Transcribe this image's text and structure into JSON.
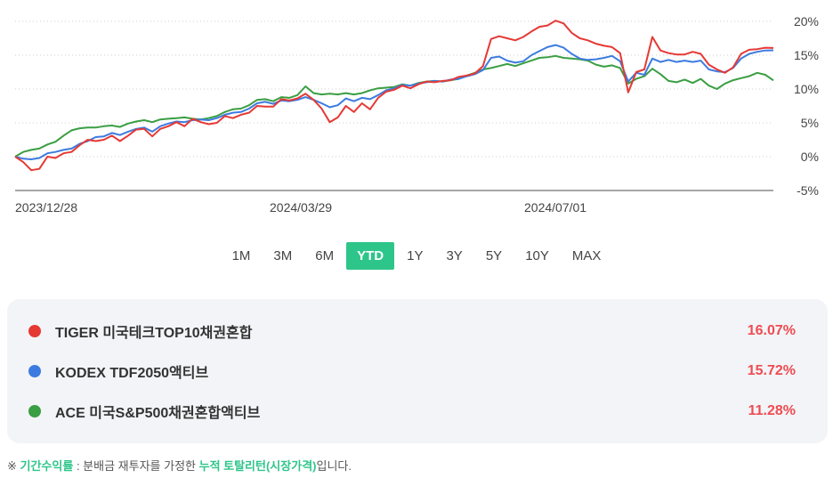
{
  "chart_data": {
    "type": "line",
    "x_ticks": [
      "2023/12/28",
      "2024/03/29",
      "2024/07/01"
    ],
    "y_ticks": [
      "20%",
      "15%",
      "10%",
      "5%",
      "0%",
      "-5%"
    ],
    "y_tick_values": [
      20,
      15,
      10,
      5,
      0,
      -5
    ],
    "ylim": [
      -5,
      20
    ],
    "grid": true,
    "series": [
      {
        "name": "TIGER 미국테크TOP10채권혼합",
        "color": "#e53935",
        "values": [
          0,
          -0.8,
          -2,
          -1.8,
          0,
          -0.2,
          0.5,
          0.7,
          1.7,
          2.5,
          2.3,
          2.5,
          3.1,
          2.3,
          3.1,
          4,
          4.1,
          3,
          4.1,
          4.5,
          5.1,
          4.5,
          5.6,
          5.1,
          4.8,
          5,
          6,
          5.7,
          6.2,
          6.5,
          7.5,
          7.4,
          7.4,
          8.5,
          8.3,
          8.6,
          9.3,
          8.4,
          7.1,
          5.1,
          5.8,
          7.5,
          6.6,
          7.9,
          7,
          8.7,
          9.6,
          9.9,
          10.5,
          10.1,
          10.7,
          11.1,
          11,
          11.2,
          11.3,
          11.8,
          12,
          12.3,
          13.4,
          17.4,
          17.8,
          17.5,
          17.2,
          17.7,
          18.5,
          19.2,
          19.4,
          20.1,
          19.7,
          18.3,
          17.5,
          17.2,
          16.7,
          16.4,
          16.2,
          15.3,
          9.5,
          12.5,
          12.9,
          17.7,
          15.7,
          15.3,
          15.1,
          15.1,
          15.5,
          15.2,
          13.6,
          12.9,
          12.4,
          13.2,
          15.2,
          15.8,
          15.9,
          16.1,
          16.07
        ]
      },
      {
        "name": "KODEX TDF2050액티브",
        "color": "#3d7be0",
        "values": [
          0,
          -0.3,
          -0.4,
          -0.2,
          0.5,
          0.7,
          1,
          1.2,
          1.9,
          2.3,
          2.9,
          3,
          3.5,
          3.2,
          3.7,
          4.1,
          4.3,
          3.7,
          4.5,
          4.9,
          5.2,
          5.1,
          5.4,
          5.5,
          5.4,
          5.7,
          6.2,
          6.5,
          6.6,
          7.1,
          7.9,
          8.1,
          7.8,
          8.3,
          8.2,
          8.4,
          8.8,
          8.4,
          7.9,
          7.3,
          7.6,
          8.6,
          8.2,
          8.7,
          8.5,
          9.1,
          9.8,
          10.1,
          10.6,
          10.5,
          10.8,
          11,
          11.2,
          11.1,
          11.4,
          11.5,
          11.9,
          12.2,
          12.8,
          14.6,
          14.8,
          14.2,
          13.9,
          14.1,
          15,
          15.6,
          16.2,
          16.5,
          16.1,
          15.2,
          14.5,
          14.3,
          14.4,
          14.6,
          14.9,
          14.1,
          11.1,
          12.4,
          12.1,
          14.5,
          14,
          14.3,
          14,
          14.2,
          14,
          14.2,
          12.9,
          12.6,
          12.5,
          13.1,
          14.5,
          15.2,
          15.5,
          15.7,
          15.72
        ]
      },
      {
        "name": "ACE 미국S&P500채권혼합액티브",
        "color": "#3a9e42",
        "values": [
          0,
          0.7,
          1,
          1.2,
          1.8,
          2.2,
          3.1,
          3.9,
          4.2,
          4.3,
          4.3,
          4.5,
          4.6,
          4.4,
          4.9,
          5.2,
          5.4,
          5.1,
          5.5,
          5.6,
          5.7,
          5.8,
          5.6,
          5.5,
          5.7,
          6,
          6.6,
          7,
          7.1,
          7.6,
          8.4,
          8.5,
          8.2,
          8.8,
          8.7,
          9.1,
          10.4,
          9.4,
          9.2,
          9.3,
          9.2,
          9.4,
          9.2,
          9.4,
          9.8,
          10.1,
          10.2,
          10.3,
          10.7,
          10.5,
          10.9,
          11.1,
          11.2,
          11.1,
          11.3,
          11.5,
          12,
          12.4,
          12.9,
          13.1,
          13.4,
          13.7,
          13.4,
          13.8,
          14.2,
          14.6,
          14.7,
          14.9,
          14.6,
          14.5,
          14.4,
          14.2,
          13.6,
          13.3,
          13.5,
          13.1,
          10.8,
          11.5,
          11.9,
          13,
          12.2,
          11.2,
          11,
          11.4,
          10.9,
          11.5,
          10.5,
          10,
          10.8,
          11.3,
          11.6,
          11.9,
          12.4,
          12.1,
          11.28
        ]
      }
    ]
  },
  "periods": [
    "1M",
    "3M",
    "6M",
    "YTD",
    "1Y",
    "3Y",
    "5Y",
    "10Y",
    "MAX"
  ],
  "active_period": "YTD",
  "legend": [
    {
      "name": "TIGER 미국테크TOP10채권혼합",
      "value": "16.07%",
      "color": "#e53935"
    },
    {
      "name": "KODEX TDF2050액티브",
      "value": "15.72%",
      "color": "#3d7be0"
    },
    {
      "name": "ACE 미국S&P500채권혼합액티브",
      "value": "11.28%",
      "color": "#3a9e42"
    }
  ],
  "note": {
    "prefix": "※ ",
    "term1": "기간수익률",
    "mid": " : 분배금 재투자를 가정한 ",
    "term2": "누적 토탈리턴(시장가격)",
    "suffix": "입니다."
  }
}
